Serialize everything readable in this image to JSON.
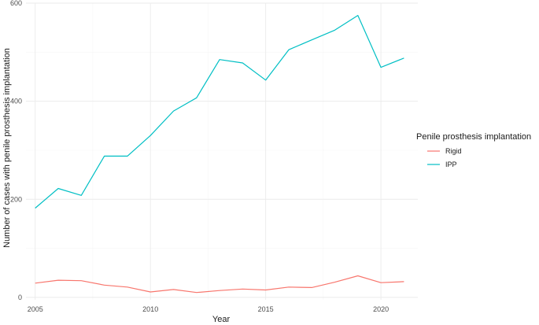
{
  "chart_data": {
    "type": "line",
    "xlabel": "Year",
    "ylabel": "Number of cases with penile prosthesis implantation",
    "xlim": [
      2004.6,
      2021.6
    ],
    "ylim": [
      -5,
      600
    ],
    "x_ticks": [
      "2005",
      "2010",
      "2015",
      "2020"
    ],
    "y_ticks": [
      "0",
      "200",
      "400",
      "600"
    ],
    "x_tick_values": [
      2005,
      2010,
      2015,
      2020
    ],
    "y_tick_values": [
      0,
      200,
      400,
      600
    ],
    "grid": true,
    "legend": {
      "title": "Penile prosthesis implantation",
      "placement": "right"
    },
    "x": [
      2005,
      2006,
      2007,
      2008,
      2009,
      2010,
      2011,
      2012,
      2013,
      2014,
      2015,
      2016,
      2017,
      2018,
      2019,
      2020,
      2021
    ],
    "series": [
      {
        "name": "Rigid",
        "color": "#F8766D",
        "values": [
          29,
          35,
          34,
          25,
          21,
          11,
          16,
          10,
          14,
          17,
          15,
          21,
          20,
          31,
          44,
          30,
          32
        ]
      },
      {
        "name": "IPP",
        "color": "#00BFC4",
        "values": [
          182,
          222,
          208,
          288,
          288,
          330,
          380,
          407,
          485,
          478,
          443,
          505,
          525,
          545,
          575,
          469,
          488
        ]
      }
    ]
  }
}
